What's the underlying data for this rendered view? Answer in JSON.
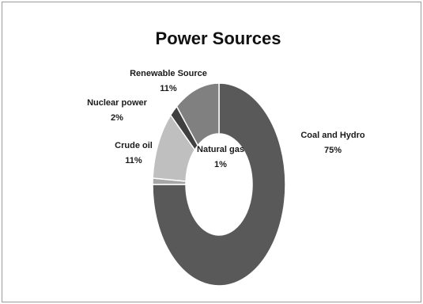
{
  "chart_data": {
    "type": "pie",
    "variant": "donut",
    "title": "Power Sources",
    "slices": [
      {
        "label": "Coal and Hydro",
        "value": 75,
        "value_label": "75%",
        "color": "#595959"
      },
      {
        "label": "Natural gas",
        "value": 1,
        "value_label": "1%",
        "color": "#a6a6a6"
      },
      {
        "label": "Crude oil",
        "value": 11,
        "value_label": "11%",
        "color": "#bfbfbf"
      },
      {
        "label": "Nuclear power",
        "value": 2,
        "value_label": "2%",
        "color": "#404040"
      },
      {
        "label": "Renewable Source",
        "value": 11,
        "value_label": "11%",
        "color": "#808080"
      }
    ],
    "legend": "none",
    "grid": false
  }
}
